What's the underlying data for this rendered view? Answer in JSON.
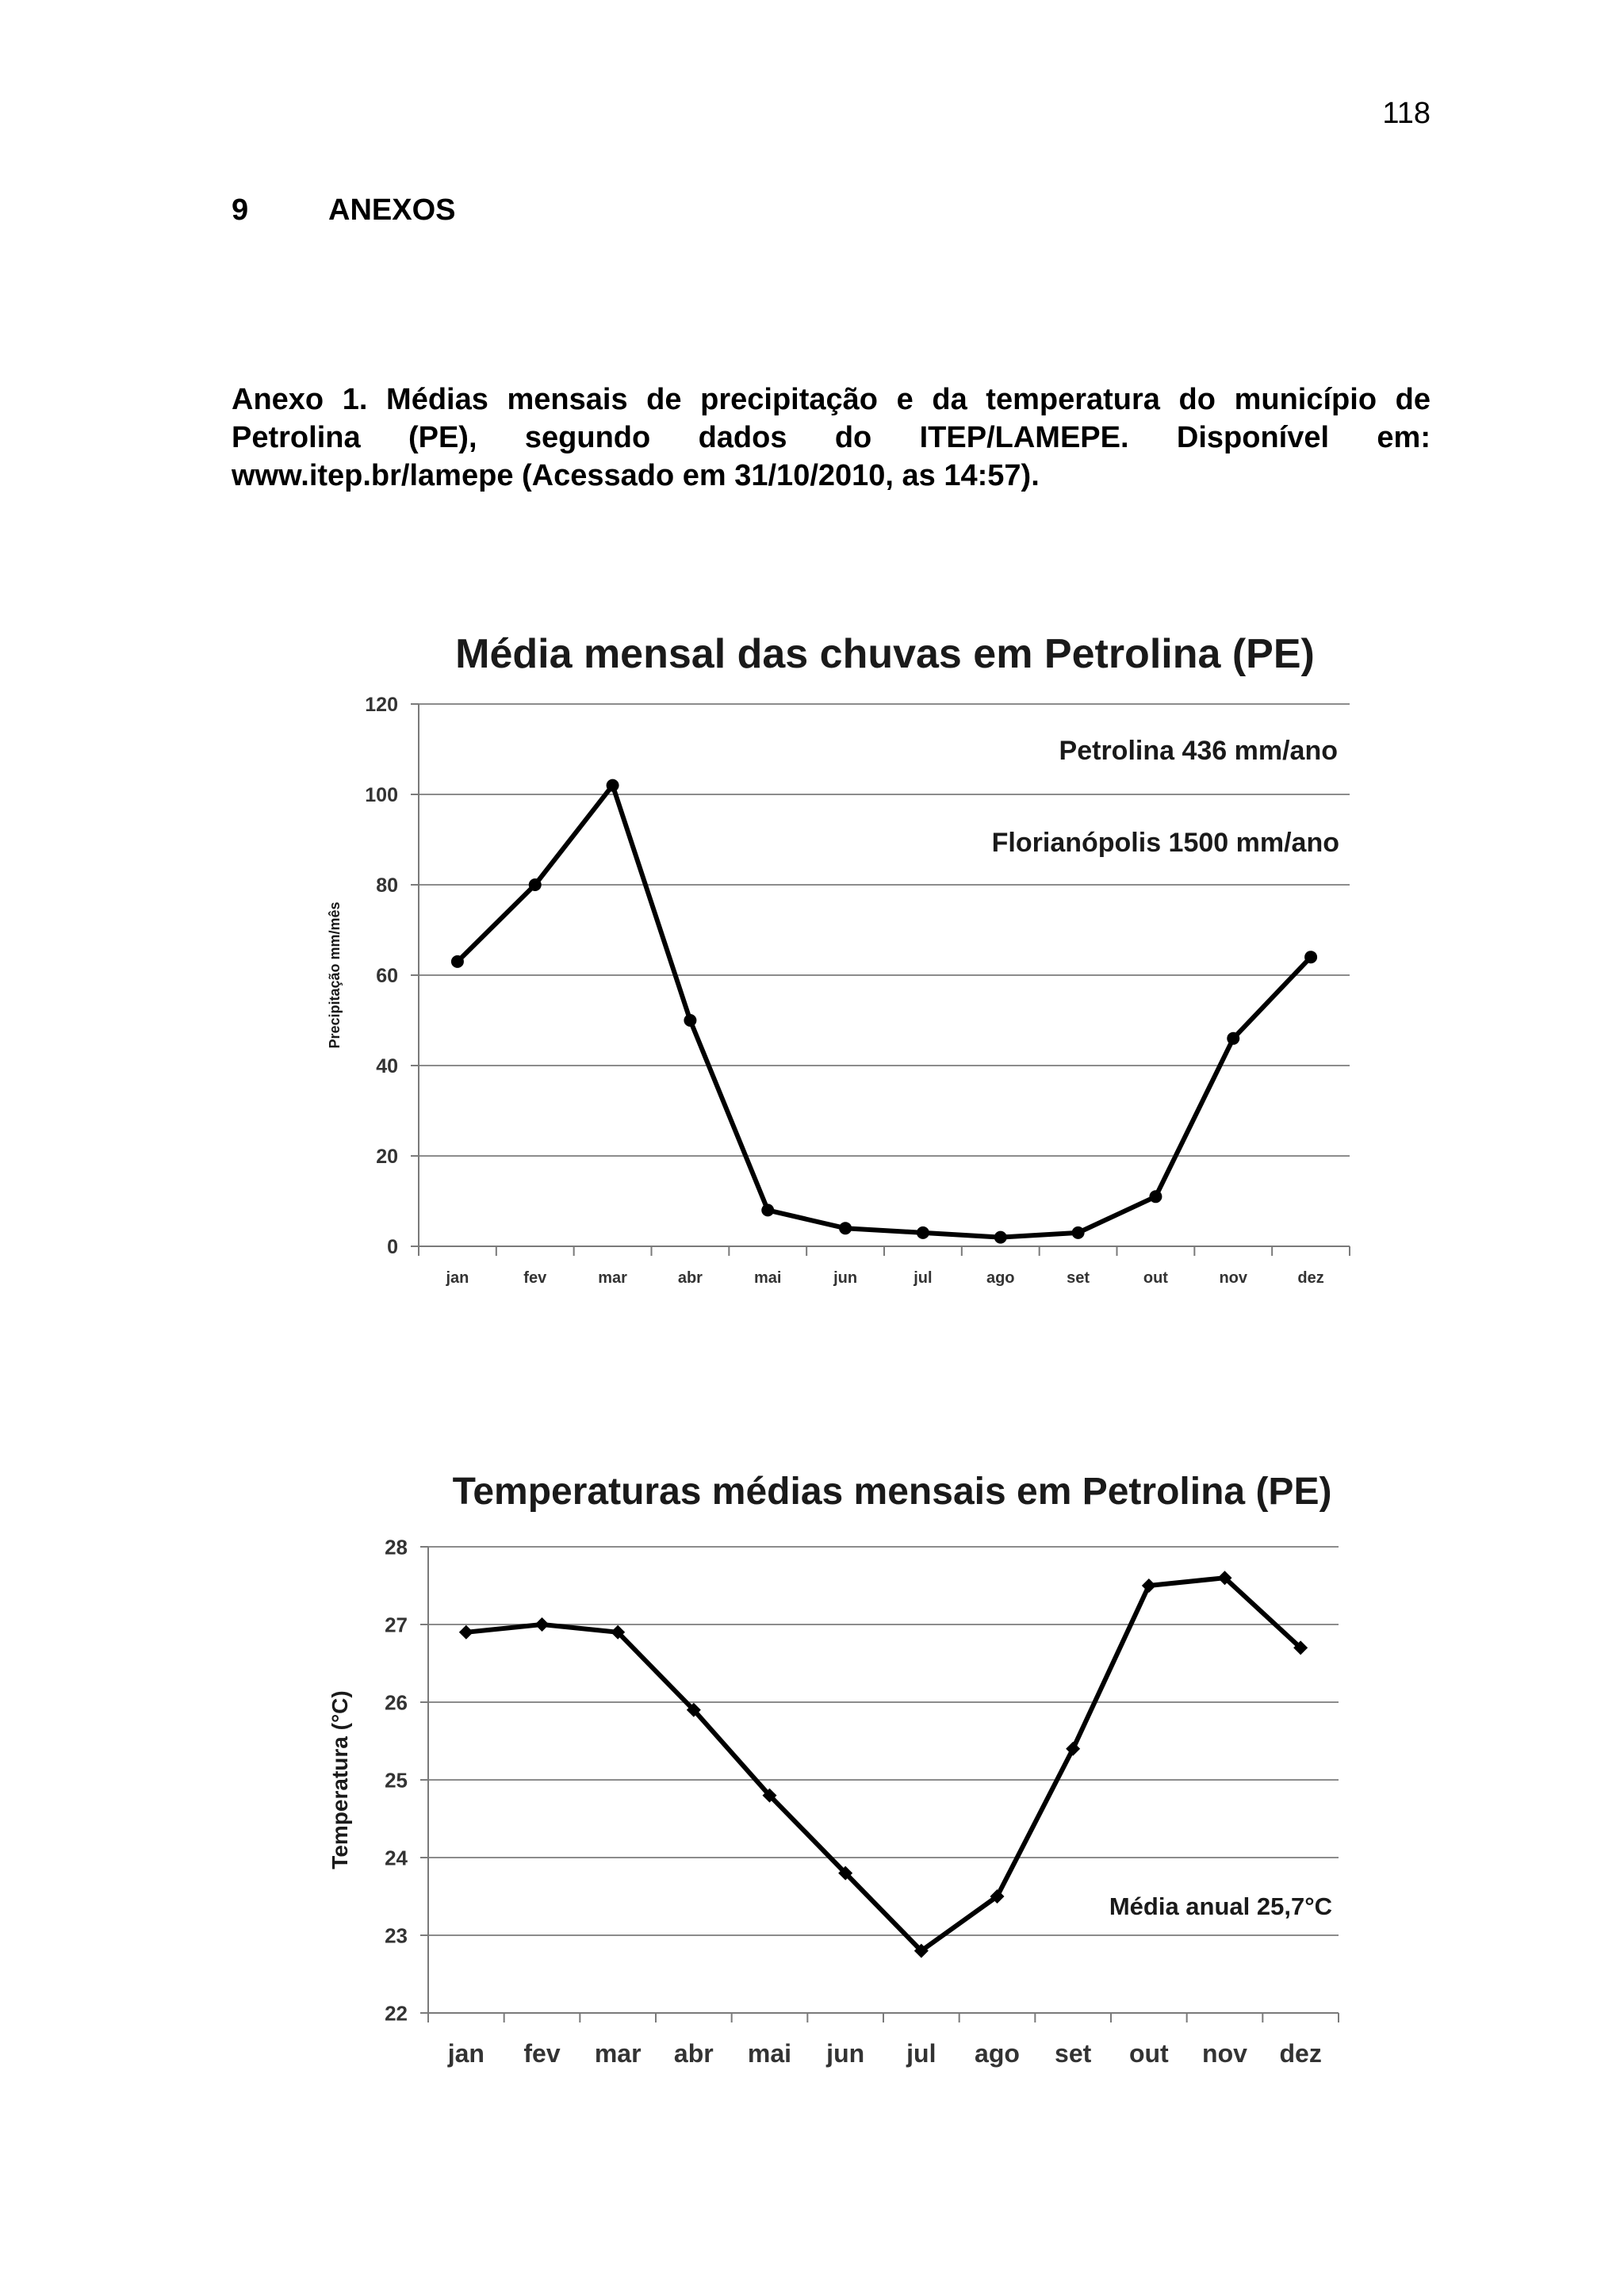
{
  "page": {
    "number": "118",
    "section_number": "9",
    "section_title": "ANEXOS",
    "caption": "Anexo 1. Médias mensais de precipitação e da temperatura do município de Petrolina (PE), segundo dados do ITEP/LAMEPE. Disponível em: www.itep.br/lamepe (Acessado em 31/10/2010, as 14:57)."
  },
  "chart_data": [
    {
      "type": "line",
      "title": "Média mensal das chuvas em Petrolina (PE)",
      "xlabel": "",
      "ylabel": "Precipitação mm/mês",
      "categories": [
        "jan",
        "fev",
        "mar",
        "abr",
        "mai",
        "jun",
        "jul",
        "ago",
        "set",
        "out",
        "nov",
        "dez"
      ],
      "series": [
        {
          "values": [
            63,
            80,
            102,
            50,
            8,
            4,
            3,
            2,
            3,
            11,
            46,
            64
          ]
        }
      ],
      "ylim": [
        0,
        120
      ],
      "yticks": [
        0,
        20,
        40,
        60,
        80,
        100,
        120
      ],
      "grid": true,
      "marker": "circle",
      "annotations": [
        "Petrolina 436 mm/ano",
        "Florianópolis 1500 mm/ano"
      ],
      "line_color": "#000000",
      "grid_color": "#8c8c8c"
    },
    {
      "type": "line",
      "title": "Temperaturas médias mensais em Petrolina (PE)",
      "xlabel": "",
      "ylabel": "Temperatura (°C)",
      "categories": [
        "jan",
        "fev",
        "mar",
        "abr",
        "mai",
        "jun",
        "jul",
        "ago",
        "set",
        "out",
        "nov",
        "dez"
      ],
      "series": [
        {
          "values": [
            26.9,
            27.0,
            26.9,
            25.9,
            24.8,
            23.8,
            22.8,
            23.5,
            25.4,
            27.5,
            27.6,
            26.7
          ]
        }
      ],
      "ylim": [
        22,
        28
      ],
      "yticks": [
        22,
        23,
        24,
        25,
        26,
        27,
        28
      ],
      "grid": true,
      "marker": "diamond",
      "annotations": [
        "Média anual 25,7°C"
      ],
      "line_color": "#000000",
      "grid_color": "#8c8c8c"
    }
  ]
}
